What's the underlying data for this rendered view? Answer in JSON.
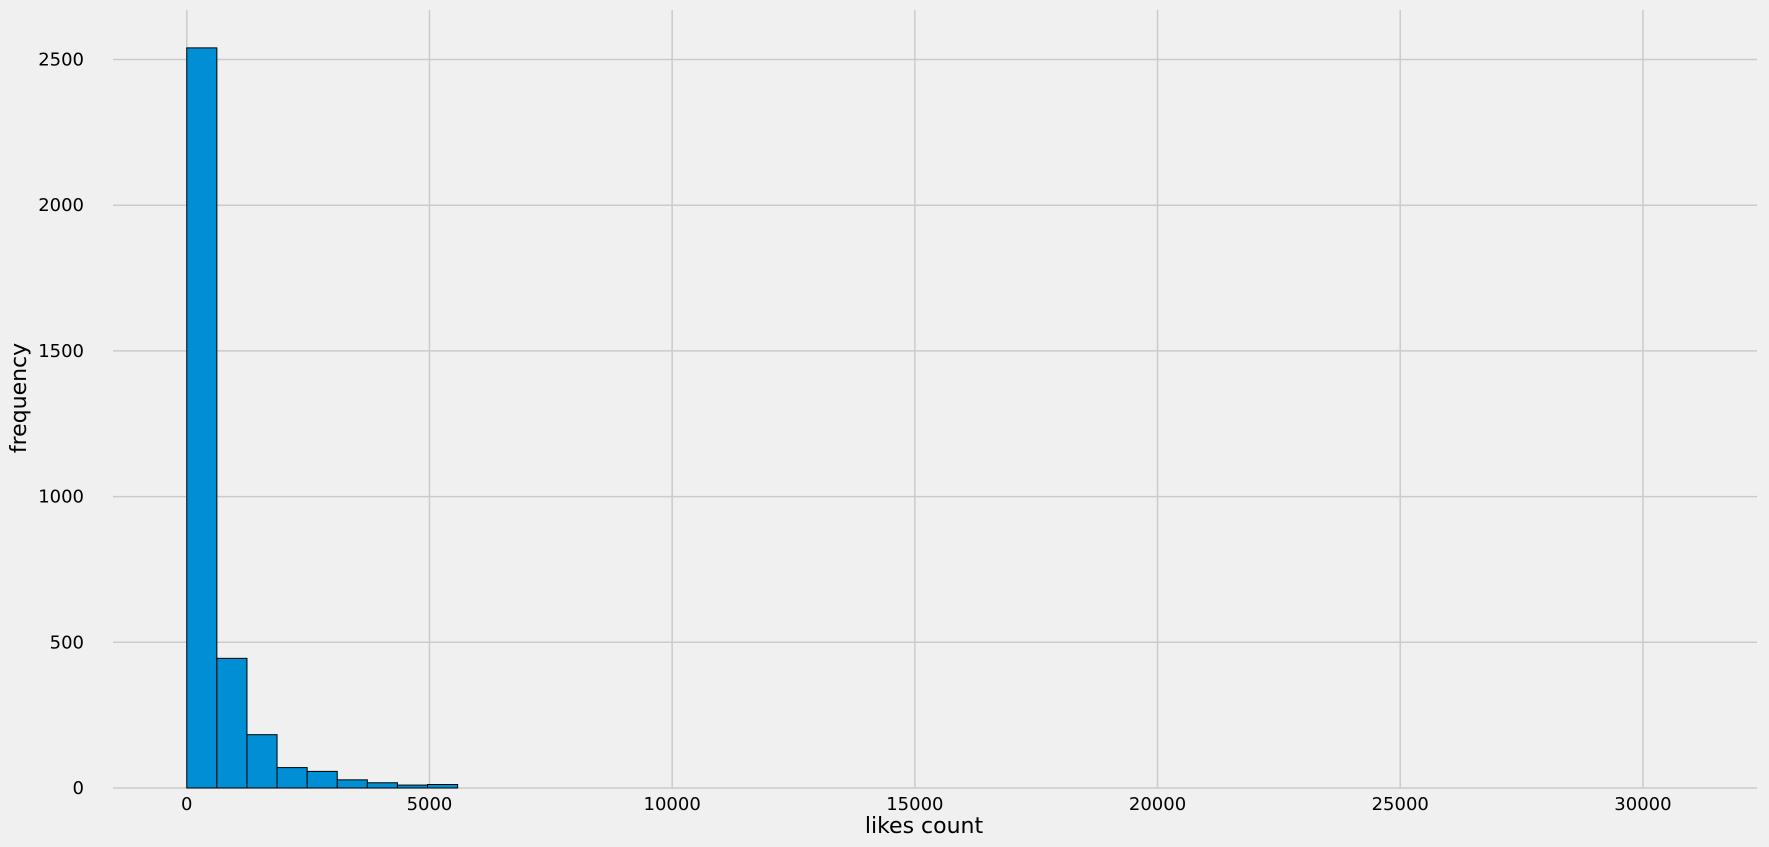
{
  "colors": {
    "background": "#f0f0f0",
    "bar": "#008fd5",
    "bar_edge": "#000000",
    "grid": "#cbcbcb"
  },
  "chart_data": {
    "type": "bar",
    "subtype": "histogram",
    "title": "",
    "xlabel": "likes count",
    "ylabel": "frequency",
    "xlim": [
      -1520,
      32350
    ],
    "ylim": [
      0,
      2670
    ],
    "grid": true,
    "x_ticks": [
      0,
      5000,
      10000,
      15000,
      20000,
      25000,
      30000
    ],
    "y_ticks": [
      0,
      500,
      1000,
      1500,
      2000,
      2500
    ],
    "bin_width": 620,
    "bins": [
      {
        "start": 0,
        "end": 620,
        "value": 2540
      },
      {
        "start": 620,
        "end": 1240,
        "value": 445
      },
      {
        "start": 1240,
        "end": 1860,
        "value": 183
      },
      {
        "start": 1860,
        "end": 2480,
        "value": 70
      },
      {
        "start": 2480,
        "end": 3100,
        "value": 57
      },
      {
        "start": 3100,
        "end": 3720,
        "value": 28
      },
      {
        "start": 3720,
        "end": 4340,
        "value": 18
      },
      {
        "start": 4340,
        "end": 4960,
        "value": 10
      },
      {
        "start": 4960,
        "end": 5580,
        "value": 12
      }
    ]
  }
}
